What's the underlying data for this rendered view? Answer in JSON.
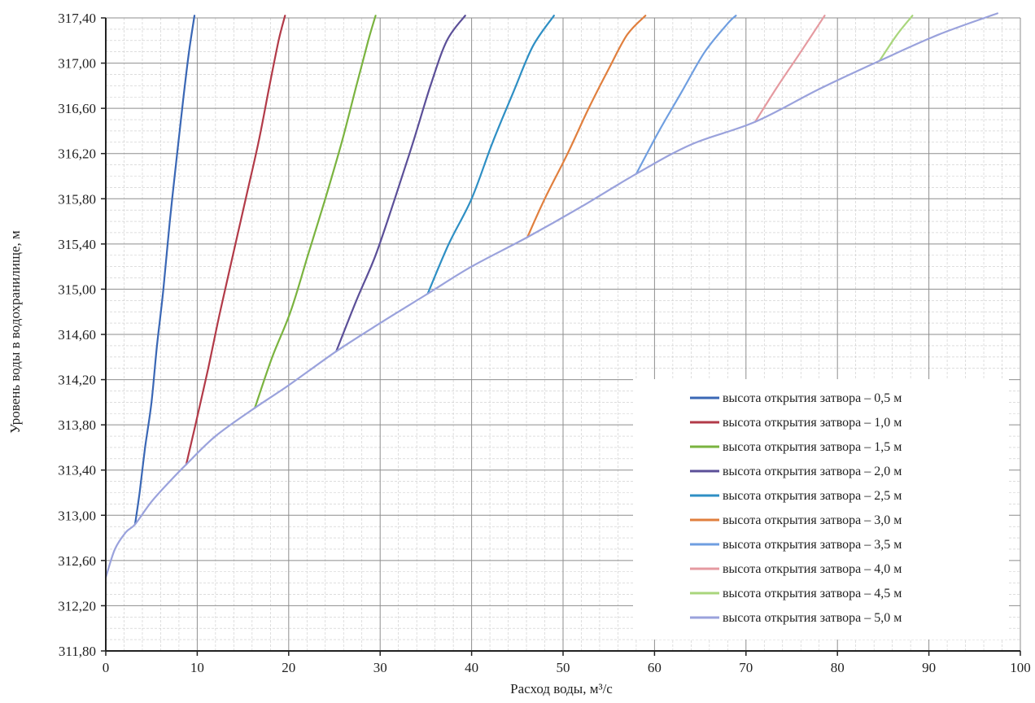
{
  "chart_data": {
    "type": "line",
    "title": "",
    "xlabel": "Расход воды, м³/с",
    "ylabel": "Уровень воды в водохранилище, м",
    "xlim": [
      0,
      100
    ],
    "ylim": [
      311.8,
      317.4
    ],
    "x_ticks": [
      0,
      10,
      20,
      30,
      40,
      50,
      60,
      70,
      80,
      90,
      100
    ],
    "x_tick_labels": [
      "0",
      "10",
      "20",
      "30",
      "40",
      "50",
      "60",
      "70",
      "80",
      "90",
      "100"
    ],
    "y_ticks": [
      311.8,
      312.2,
      312.6,
      313.0,
      313.4,
      313.8,
      314.2,
      314.6,
      315.0,
      315.4,
      315.8,
      316.2,
      316.6,
      317.0,
      317.4
    ],
    "y_tick_labels": [
      "311,80",
      "312,20",
      "312,60",
      "313,00",
      "313,40",
      "313,80",
      "314,20",
      "314,60",
      "315,00",
      "315,40",
      "315,80",
      "316,20",
      "316,60",
      "317,00",
      "317,40"
    ],
    "grid": true,
    "legend_position": "bottom-right",
    "series": [
      {
        "name": "высота открытия затвора – 0,5 м",
        "color": "#3a67b5",
        "points": [
          [
            3.2,
            312.92
          ],
          [
            3.7,
            313.2
          ],
          [
            4.3,
            313.6
          ],
          [
            5.0,
            314.0
          ],
          [
            5.6,
            314.5
          ],
          [
            6.3,
            315.0
          ],
          [
            7.0,
            315.6
          ],
          [
            7.8,
            316.2
          ],
          [
            8.5,
            316.7
          ],
          [
            9.1,
            317.1
          ],
          [
            9.7,
            317.42
          ]
        ]
      },
      {
        "name": "высота открытия затвора – 1,0 м",
        "color": "#b23a48",
        "points": [
          [
            8.8,
            313.45
          ],
          [
            9.8,
            313.8
          ],
          [
            11.2,
            314.3
          ],
          [
            12.5,
            314.8
          ],
          [
            13.9,
            315.3
          ],
          [
            15.3,
            315.8
          ],
          [
            16.7,
            316.3
          ],
          [
            17.9,
            316.8
          ],
          [
            18.9,
            317.2
          ],
          [
            19.6,
            317.42
          ]
        ]
      },
      {
        "name": "высота открытия затвора – 1,5 м",
        "color": "#7ab33f",
        "points": [
          [
            16.3,
            313.95
          ],
          [
            18.2,
            314.4
          ],
          [
            20.2,
            314.8
          ],
          [
            22.1,
            315.3
          ],
          [
            24.0,
            315.8
          ],
          [
            25.8,
            316.3
          ],
          [
            27.4,
            316.8
          ],
          [
            28.7,
            317.2
          ],
          [
            29.5,
            317.42
          ]
        ]
      },
      {
        "name": "высота открытия затвора – 2,0 м",
        "color": "#5b4f98",
        "points": [
          [
            25.2,
            314.45
          ],
          [
            27.4,
            314.9
          ],
          [
            29.5,
            315.3
          ],
          [
            31.6,
            315.8
          ],
          [
            33.6,
            316.3
          ],
          [
            35.5,
            316.8
          ],
          [
            37.3,
            317.2
          ],
          [
            39.3,
            317.42
          ]
        ]
      },
      {
        "name": "высота открытия затвора – 2,5 м",
        "color": "#2e8fc4",
        "points": [
          [
            35.2,
            314.96
          ],
          [
            37.5,
            315.4
          ],
          [
            40.0,
            315.8
          ],
          [
            42.3,
            316.3
          ],
          [
            44.6,
            316.75
          ],
          [
            46.7,
            317.15
          ],
          [
            49.0,
            317.42
          ]
        ]
      },
      {
        "name": "высота открытия затвора – 3,0 м",
        "color": "#e07f3e",
        "points": [
          [
            46.1,
            315.46
          ],
          [
            48.0,
            315.8
          ],
          [
            50.5,
            316.2
          ],
          [
            52.8,
            316.6
          ],
          [
            55.0,
            316.95
          ],
          [
            57.0,
            317.25
          ],
          [
            59.0,
            317.42
          ]
        ]
      },
      {
        "name": "высота открытия затвора – 3,5 м",
        "color": "#6f9ee0",
        "points": [
          [
            58.0,
            316.02
          ],
          [
            60.5,
            316.4
          ],
          [
            63.0,
            316.75
          ],
          [
            65.5,
            317.1
          ],
          [
            68.0,
            317.35
          ],
          [
            68.9,
            317.42
          ]
        ]
      },
      {
        "name": "высота открытия затвора – 4,0 м",
        "color": "#e59aa0",
        "points": [
          [
            71.0,
            316.48
          ],
          [
            73.5,
            316.8
          ],
          [
            76.0,
            317.1
          ],
          [
            78.6,
            317.42
          ]
        ]
      },
      {
        "name": "высота открытия затвора – 4,5 м",
        "color": "#a9d67c",
        "points": [
          [
            84.6,
            317.02
          ],
          [
            86.5,
            317.25
          ],
          [
            88.2,
            317.42
          ]
        ]
      },
      {
        "name": "высота открытия затвора – 5,0 м",
        "color": "#9aa2dc",
        "points": [
          [
            0,
            312.45
          ],
          [
            1.0,
            312.7
          ],
          [
            2.2,
            312.85
          ],
          [
            3.2,
            312.92
          ],
          [
            5.0,
            313.12
          ],
          [
            7.0,
            313.3
          ],
          [
            8.8,
            313.45
          ],
          [
            12.0,
            313.7
          ],
          [
            16.3,
            313.95
          ],
          [
            20.0,
            314.15
          ],
          [
            25.2,
            314.45
          ],
          [
            30.0,
            314.7
          ],
          [
            35.2,
            314.96
          ],
          [
            40.0,
            315.2
          ],
          [
            46.1,
            315.46
          ],
          [
            52.0,
            315.73
          ],
          [
            58.0,
            316.02
          ],
          [
            64.0,
            316.28
          ],
          [
            71.0,
            316.48
          ],
          [
            78.0,
            316.77
          ],
          [
            84.6,
            317.02
          ],
          [
            91.0,
            317.25
          ],
          [
            97.5,
            317.44
          ]
        ]
      }
    ]
  }
}
